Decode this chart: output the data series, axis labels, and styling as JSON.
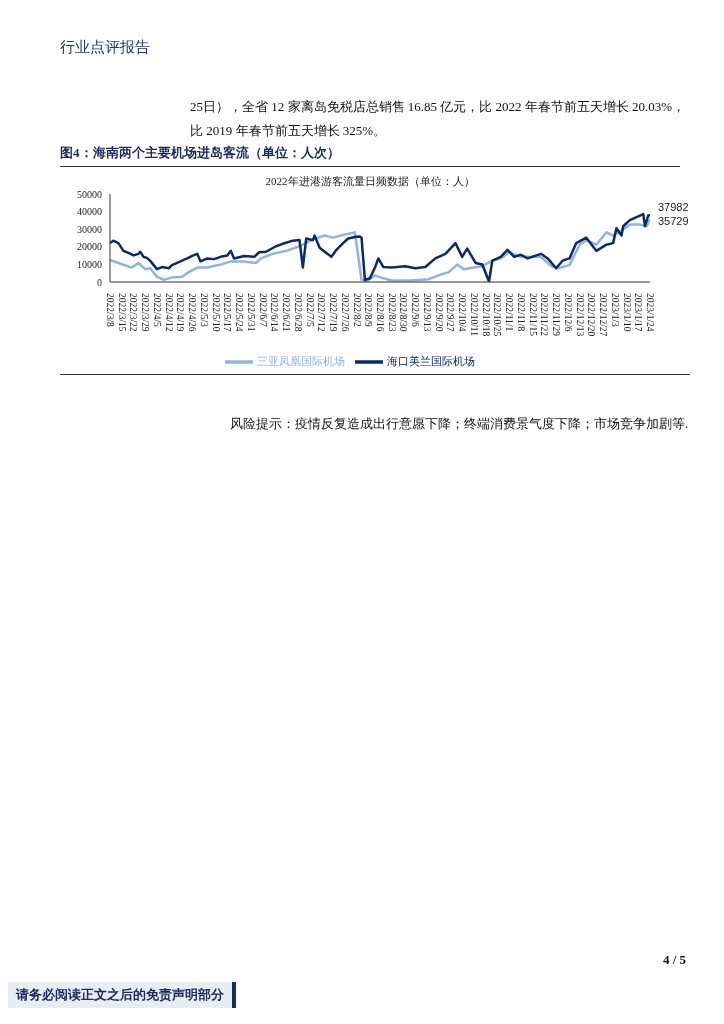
{
  "chart_data": {
    "type": "line",
    "title": "图4：海南两个主要机场进岛客流（单位：人次）",
    "subtitle": "2022年进港游客流量日频数据（单位：人）",
    "annotations": [
      "行业点评报告",
      "25日），全省 12 家离岛免税店总销售 16.85 亿元，比 2022 年春节前五天增长 20.03%，",
      "比 2019 年春节前五天增长 325%。",
      "风险提示：疫情反复造成出行意愿下降；终端消费景气度下降；市场竞争加剧等.",
      "4 / 5",
      "请务必阅读正文之后的免责声明部分"
    ],
    "series": [
      {
        "name": "三亚凤凰国际机场",
        "color": "#8fb4e3",
        "x": [
          "2022-03-08",
          "2022-03-13",
          "2022-03-21",
          "2022-03-25",
          "2022-03-29",
          "2022-04-01",
          "2022-04-05",
          "2022-04-09",
          "2022-04-14",
          "2022-04-20",
          "2022-04-24",
          "2022-04-29",
          "2022-05-05",
          "2022-05-13",
          "2022-05-19",
          "2022-05-27",
          "2022-06-03",
          "2022-06-06",
          "2022-06-13",
          "2022-06-21",
          "2022-06-29",
          "2022-07-07",
          "2022-07-14",
          "2022-07-19",
          "2022-07-26",
          "2022-08-01",
          "2022-08-05",
          "2022-08-08",
          "2022-08-13",
          "2022-08-18",
          "2022-08-23",
          "2022-09-04",
          "2022-09-14",
          "2022-09-20",
          "2022-09-26",
          "2022-10-01",
          "2022-10-05",
          "2022-10-11",
          "2022-10-16",
          "2022-10-21",
          "2022-10-27",
          "2022-11-01",
          "2022-11-08",
          "2022-11-20",
          "2022-11-26",
          "2022-11-30",
          "2022-12-07",
          "2022-12-13",
          "2022-12-17",
          "2022-12-23",
          "2022-12-29",
          "2023-01-02",
          "2023-01-08",
          "2023-01-12",
          "2023-01-18",
          "2023-01-22",
          "2023-01-24"
        ],
        "values": [
          12500,
          10800,
          8200,
          10800,
          7300,
          7800,
          3000,
          1200,
          2600,
          3000,
          5600,
          8200,
          8200,
          9900,
          11700,
          11700,
          10800,
          13400,
          16000,
          17700,
          20300,
          24200,
          26400,
          25200,
          27000,
          28200,
          1200,
          300,
          3800,
          2100,
          900,
          900,
          1600,
          3800,
          5600,
          9900,
          7300,
          8200,
          9000,
          11700,
          13400,
          16900,
          14300,
          14300,
          9000,
          7800,
          9600,
          21200,
          23800,
          21200,
          28200,
          26400,
          29900,
          32600,
          32600,
          31700,
          35729
        ],
        "value_labels": [
          null,
          null,
          null,
          null,
          null,
          null,
          null,
          null,
          null,
          null,
          null,
          null,
          null,
          null,
          null,
          null,
          null,
          null,
          null,
          null,
          null,
          null,
          null,
          null,
          null,
          null,
          null,
          null,
          null,
          null,
          null,
          null,
          null,
          null,
          null,
          null,
          null,
          null,
          null,
          null,
          null,
          null,
          null,
          null,
          null,
          null,
          null,
          null,
          null,
          null,
          null,
          null,
          null,
          null,
          null,
          null,
          "35729"
        ]
      },
      {
        "name": "海口美兰国际机场",
        "color": "#0b2a66",
        "x": [
          "2022-03-08",
          "2022-03-10",
          "2022-03-13",
          "2022-03-16",
          "2022-03-19",
          "2022-03-22",
          "2022-03-25",
          "2022-03-26",
          "2022-03-28",
          "2022-03-30",
          "2022-04-01",
          "2022-04-05",
          "2022-04-08",
          "2022-04-12",
          "2022-04-14",
          "2022-04-18",
          "2022-04-23",
          "2022-04-26",
          "2022-04-29",
          "2022-05-01",
          "2022-05-05",
          "2022-05-09",
          "2022-05-13",
          "2022-05-17",
          "2022-05-19",
          "2022-05-21",
          "2022-05-27",
          "2022-06-02",
          "2022-06-05",
          "2022-06-09",
          "2022-06-15",
          "2022-06-19",
          "2022-06-25",
          "2022-06-29",
          "2022-07-01",
          "2022-07-03",
          "2022-07-07",
          "2022-07-08",
          "2022-07-11",
          "2022-07-15",
          "2022-07-18",
          "2022-07-21",
          "2022-07-25",
          "2022-07-28",
          "2022-08-01",
          "2022-08-04",
          "2022-08-05",
          "2022-08-07",
          "2022-08-10",
          "2022-08-13",
          "2022-08-15",
          "2022-08-18",
          "2022-08-23",
          "2022-08-31",
          "2022-09-06",
          "2022-09-12",
          "2022-09-18",
          "2022-09-24",
          "2022-09-30",
          "2022-10-04",
          "2022-10-07",
          "2022-10-12",
          "2022-10-16",
          "2022-10-20",
          "2022-10-22",
          "2022-10-27",
          "2022-10-31",
          "2022-11-04",
          "2022-11-08",
          "2022-11-12",
          "2022-11-20",
          "2022-11-24",
          "2022-11-29",
          "2022-12-03",
          "2022-12-07",
          "2022-12-11",
          "2022-12-17",
          "2022-12-23",
          "2022-12-29",
          "2023-01-02",
          "2023-01-04",
          "2023-01-07",
          "2023-01-08",
          "2023-01-12",
          "2023-01-16",
          "2023-01-20",
          "2023-01-21",
          "2023-01-23",
          "2023-01-24"
        ],
        "values": [
          22100,
          23500,
          22100,
          17700,
          16500,
          15100,
          16000,
          17200,
          14300,
          13700,
          12000,
          7300,
          8500,
          7800,
          9600,
          11300,
          13400,
          14800,
          16000,
          11700,
          13400,
          13000,
          14300,
          15100,
          17700,
          13400,
          14800,
          14300,
          16900,
          17200,
          20300,
          21700,
          23500,
          23800,
          8200,
          24700,
          23800,
          26400,
          19500,
          16500,
          14300,
          18300,
          22100,
          24700,
          25600,
          25900,
          25200,
          1200,
          2100,
          8200,
          13400,
          8500,
          8200,
          9000,
          7800,
          8500,
          13400,
          16000,
          22100,
          14300,
          19000,
          10800,
          9900,
          300,
          12200,
          14300,
          18300,
          14300,
          15500,
          13400,
          16000,
          13400,
          7800,
          12200,
          13400,
          22100,
          25200,
          17700,
          21200,
          22100,
          30500,
          26400,
          31700,
          35200,
          36900,
          38600,
          31700,
          37800,
          37982
        ],
        "value_labels": [
          null,
          null,
          null,
          null,
          null,
          null,
          null,
          null,
          null,
          null,
          null,
          null,
          null,
          null,
          null,
          null,
          null,
          null,
          null,
          null,
          null,
          null,
          null,
          null,
          null,
          null,
          null,
          null,
          null,
          null,
          null,
          null,
          null,
          null,
          null,
          null,
          null,
          null,
          null,
          null,
          null,
          null,
          null,
          null,
          null,
          null,
          null,
          null,
          null,
          null,
          null,
          null,
          null,
          null,
          null,
          null,
          null,
          null,
          null,
          null,
          null,
          null,
          null,
          null,
          null,
          null,
          null,
          null,
          null,
          null,
          null,
          null,
          null,
          null,
          null,
          null,
          null,
          null,
          null,
          null,
          null,
          null,
          null,
          null,
          null,
          null,
          null,
          null,
          "37982"
        ]
      }
    ],
    "xlim": [
      "2022-03-08",
      "2023-01-24"
    ],
    "xticks": [
      {
        "value": "2022-03-08",
        "label": "2022/3/8"
      },
      {
        "value": "2022-03-15",
        "label": "2022/3/15"
      },
      {
        "value": "2022-03-22",
        "label": "2022/3/22"
      },
      {
        "value": "2022-03-29",
        "label": "2022/3/29"
      },
      {
        "value": "2022-04-05",
        "label": "2022/4/5"
      },
      {
        "value": "2022-04-12",
        "label": "2022/4/12"
      },
      {
        "value": "2022-04-19",
        "label": "2022/4/19"
      },
      {
        "value": "2022-04-26",
        "label": "2022/4/26"
      },
      {
        "value": "2022-05-03",
        "label": "2022/5/3"
      },
      {
        "value": "2022-05-10",
        "label": "2022/5/10"
      },
      {
        "value": "2022-05-17",
        "label": "2022/5/17"
      },
      {
        "value": "2022-05-24",
        "label": "2022/5/24"
      },
      {
        "value": "2022-05-31",
        "label": "2022/5/31"
      },
      {
        "value": "2022-06-07",
        "label": "2022/6/7"
      },
      {
        "value": "2022-06-14",
        "label": "2022/6/14"
      },
      {
        "value": "2022-06-21",
        "label": "2022/6/21"
      },
      {
        "value": "2022-06-28",
        "label": "2022/6/28"
      },
      {
        "value": "2022-07-05",
        "label": "2022/7/5"
      },
      {
        "value": "2022-07-12",
        "label": "2022/7/12"
      },
      {
        "value": "2022-07-19",
        "label": "2022/7/19"
      },
      {
        "value": "2022-07-26",
        "label": "2022/7/26"
      },
      {
        "value": "2022-08-02",
        "label": "2022/8/2"
      },
      {
        "value": "2022-08-09",
        "label": "2022/8/9"
      },
      {
        "value": "2022-08-16",
        "label": "2022/8/16"
      },
      {
        "value": "2022-08-23",
        "label": "2022/8/23"
      },
      {
        "value": "2022-08-30",
        "label": "2022/8/30"
      },
      {
        "value": "2022-09-06",
        "label": "2022/9/6"
      },
      {
        "value": "2022-09-13",
        "label": "2022/9/13"
      },
      {
        "value": "2022-09-20",
        "label": "2022/9/20"
      },
      {
        "value": "2022-09-27",
        "label": "2022/9/27"
      },
      {
        "value": "2022-10-04",
        "label": "2022/10/4"
      },
      {
        "value": "2022-10-11",
        "label": "2022/10/11"
      },
      {
        "value": "2022-10-18",
        "label": "2022/10/18"
      },
      {
        "value": "2022-10-25",
        "label": "2022/10/25"
      },
      {
        "value": "2022-11-01",
        "label": "2022/11/1"
      },
      {
        "value": "2022-11-08",
        "label": "2022/11/8"
      },
      {
        "value": "2022-11-15",
        "label": "2022/11/15"
      },
      {
        "value": "2022-11-22",
        "label": "2022/11/22"
      },
      {
        "value": "2022-11-29",
        "label": "2022/11/29"
      },
      {
        "value": "2022-12-06",
        "label": "2022/12/6"
      },
      {
        "value": "2022-12-13",
        "label": "2022/12/13"
      },
      {
        "value": "2022-12-20",
        "label": "2022/12/20"
      },
      {
        "value": "2022-12-27",
        "label": "2022/12/27"
      },
      {
        "value": "2023-01-03",
        "label": "2023/1/3"
      },
      {
        "value": "2023-01-10",
        "label": "2023/1/10"
      },
      {
        "value": "2023-01-17",
        "label": "2023/1/17"
      },
      {
        "value": "2023-01-24",
        "label": "2023/1/24"
      }
    ],
    "ylim": [
      0,
      50000
    ],
    "yticks": [
      0,
      10000,
      20000,
      30000,
      40000,
      50000
    ],
    "grid": false,
    "legend": "bottom",
    "marker": "none",
    "line_style": "solid"
  }
}
